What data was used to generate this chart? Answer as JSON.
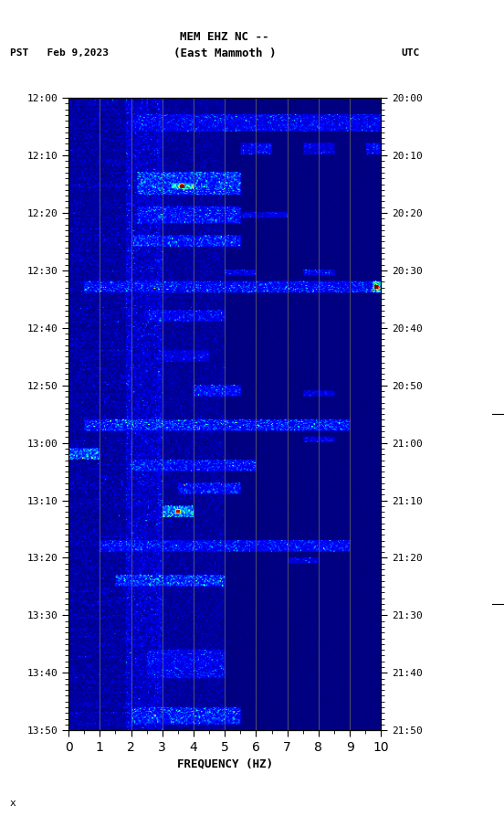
{
  "title_line1": "MEM EHZ NC --",
  "title_line2": "(East Mammoth )",
  "label_left": "PST   Feb 9,2023",
  "label_right": "UTC",
  "xlabel": "FREQUENCY (HZ)",
  "freq_min": 0,
  "freq_max": 10,
  "ytick_pst": [
    "12:00",
    "12:10",
    "12:20",
    "12:30",
    "12:40",
    "12:50",
    "13:00",
    "13:10",
    "13:20",
    "13:30",
    "13:40",
    "13:50"
  ],
  "ytick_utc": [
    "20:00",
    "20:10",
    "20:20",
    "20:30",
    "20:40",
    "20:50",
    "21:00",
    "21:10",
    "21:20",
    "21:30",
    "21:40",
    "21:50"
  ],
  "xticks": [
    0,
    1,
    2,
    3,
    4,
    5,
    6,
    7,
    8,
    9,
    10
  ],
  "grid_color": "#888855",
  "fig_width": 5.52,
  "fig_height": 8.93,
  "dpi": 100
}
